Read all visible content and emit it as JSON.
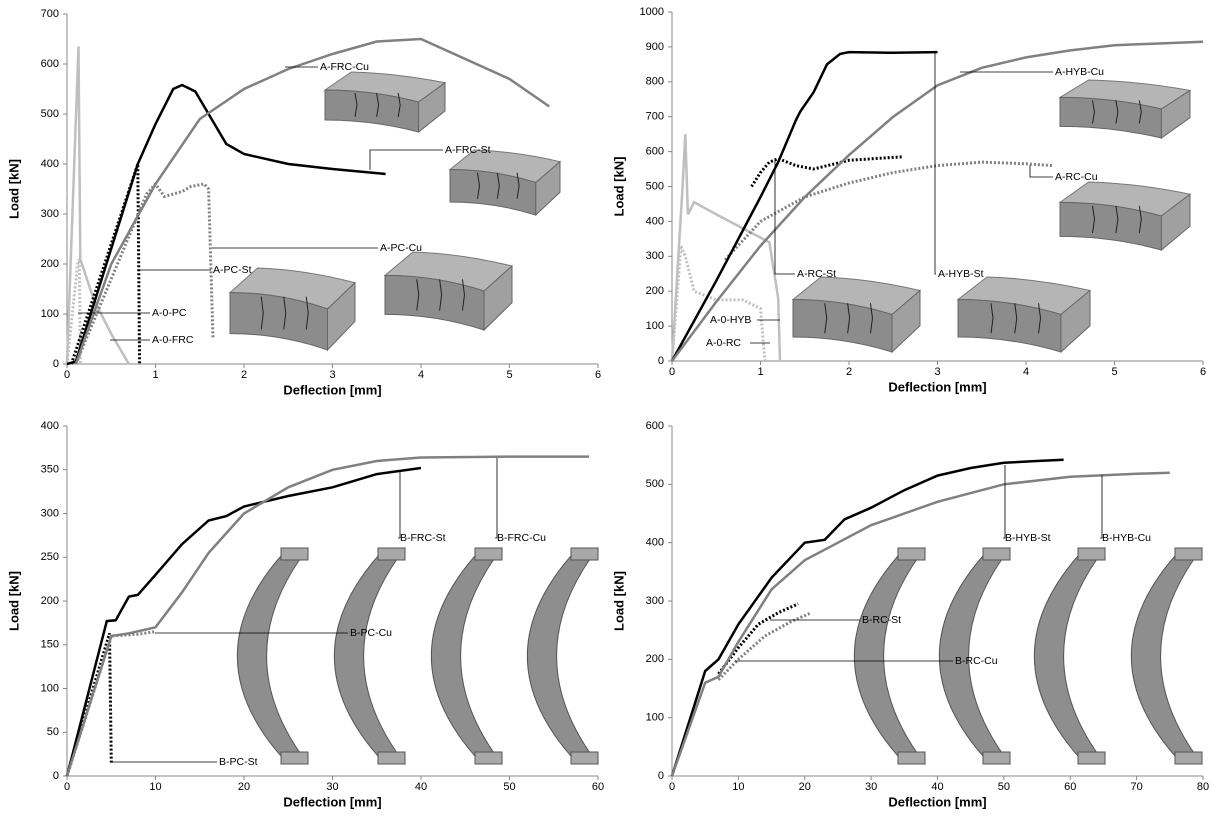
{
  "chart_data": [
    {
      "type": "line",
      "x_label": "Deflection [mm]",
      "y_label": "Load [kN]",
      "xlim": [
        0,
        6
      ],
      "ylim": [
        0,
        700
      ],
      "xticks": [
        0,
        1,
        2,
        3,
        4,
        5,
        6
      ],
      "yticks": [
        0,
        100,
        200,
        300,
        400,
        500,
        600,
        700
      ],
      "series": [
        {
          "name": "A-0-PC",
          "color": "#bfbfbf",
          "style": "dotted",
          "x": [
            0,
            0.12,
            0.14,
            0.15
          ],
          "values": [
            0,
            200,
            210,
            0
          ]
        },
        {
          "name": "A-0-FRC",
          "color": "#bfbfbf",
          "style": "solid",
          "x": [
            0,
            0.13,
            0.15,
            0.3,
            0.5,
            0.7
          ],
          "values": [
            0,
            635,
            210,
            130,
            60,
            0
          ]
        },
        {
          "name": "A-PC-St",
          "color": "#000000",
          "style": "dotted",
          "x": [
            0.05,
            0.8,
            0.82
          ],
          "values": [
            0,
            400,
            0
          ]
        },
        {
          "name": "A-PC-Cu",
          "color": "#808080",
          "style": "dotted",
          "x": [
            0.1,
            0.9,
            1.0,
            1.1,
            1.3,
            1.4,
            1.55,
            1.6,
            1.65
          ],
          "values": [
            0,
            340,
            360,
            335,
            345,
            355,
            360,
            350,
            50
          ]
        },
        {
          "name": "A-FRC-St",
          "color": "#000000",
          "style": "solid",
          "x": [
            0,
            0.1,
            0.8,
            1.0,
            1.2,
            1.3,
            1.45,
            1.6,
            1.8,
            2.0,
            2.5,
            3.0,
            3.6
          ],
          "values": [
            0,
            5,
            400,
            480,
            550,
            558,
            545,
            500,
            440,
            420,
            400,
            390,
            380
          ]
        },
        {
          "name": "A-FRC-Cu",
          "color": "#808080",
          "style": "solid",
          "x": [
            0.1,
            0.5,
            1.0,
            1.5,
            2.0,
            2.5,
            3.0,
            3.5,
            4.0,
            4.5,
            5.0,
            5.45
          ],
          "values": [
            0,
            200,
            360,
            490,
            550,
            590,
            620,
            645,
            650,
            610,
            570,
            515
          ]
        }
      ]
    },
    {
      "type": "line",
      "x_label": "Deflection [mm]",
      "y_label": "Load [kN]",
      "xlim": [
        0,
        6
      ],
      "ylim": [
        0,
        1000
      ],
      "xticks": [
        0,
        1,
        2,
        3,
        4,
        5,
        6
      ],
      "yticks": [
        0,
        100,
        200,
        300,
        400,
        500,
        600,
        700,
        800,
        900,
        1000
      ],
      "series": [
        {
          "name": "A-0-HYB",
          "color": "#bfbfbf",
          "style": "solid",
          "x": [
            0,
            0.12,
            0.15,
            0.18,
            0.25,
            0.5,
            0.8,
            1.1,
            1.15,
            1.2,
            1.22
          ],
          "values": [
            0,
            500,
            650,
            420,
            455,
            420,
            380,
            340,
            260,
            180,
            0
          ]
        },
        {
          "name": "A-0-RC",
          "color": "#bfbfbf",
          "style": "dotted",
          "x": [
            0,
            0.1,
            0.15,
            0.25,
            0.5,
            0.8,
            1.0,
            1.05
          ],
          "values": [
            0,
            330,
            300,
            200,
            175,
            175,
            150,
            0
          ]
        },
        {
          "name": "A-RC-St",
          "color": "#000000",
          "style": "dotted",
          "x": [
            0.9,
            1.0,
            1.1,
            1.2,
            1.4,
            1.6,
            2.0,
            2.6
          ],
          "values": [
            500,
            540,
            570,
            580,
            560,
            550,
            575,
            585
          ]
        },
        {
          "name": "A-RC-Cu",
          "color": "#808080",
          "style": "dotted",
          "x": [
            0.6,
            1,
            1.5,
            2,
            2.5,
            3,
            3.5,
            4,
            4.3
          ],
          "values": [
            290,
            400,
            470,
            510,
            540,
            560,
            570,
            565,
            560
          ]
        },
        {
          "name": "A-HYB-St",
          "color": "#000000",
          "style": "solid",
          "x": [
            0,
            0.5,
            1.0,
            1.2,
            1.4,
            1.45,
            1.6,
            1.75,
            1.9,
            2,
            2.5,
            3
          ],
          "values": [
            0,
            230,
            470,
            570,
            690,
            715,
            770,
            850,
            880,
            885,
            883,
            885
          ]
        },
        {
          "name": "A-HYB-Cu",
          "color": "#808080",
          "style": "solid",
          "x": [
            0,
            0.5,
            1,
            1.5,
            2,
            2.5,
            3,
            3.5,
            4,
            4.5,
            5,
            6
          ],
          "values": [
            0,
            170,
            330,
            470,
            590,
            700,
            790,
            840,
            870,
            890,
            905,
            915
          ]
        }
      ]
    },
    {
      "type": "line",
      "x_label": "Deflection [mm]",
      "y_label": "Load [kN]",
      "xlim": [
        0,
        60
      ],
      "ylim": [
        0,
        400
      ],
      "xticks": [
        0,
        10,
        20,
        30,
        40,
        50,
        60
      ],
      "yticks": [
        0,
        50,
        100,
        150,
        200,
        250,
        300,
        350,
        400
      ],
      "series": [
        {
          "name": "B-PC-St",
          "color": "#000000",
          "style": "dotted",
          "x": [
            0,
            4.8,
            5
          ],
          "values": [
            0,
            163,
            15
          ]
        },
        {
          "name": "B-PC-Cu",
          "color": "#808080",
          "style": "dotted",
          "x": [
            0,
            5,
            8,
            10
          ],
          "values": [
            0,
            160,
            162,
            165
          ]
        },
        {
          "name": "B-FRC-St",
          "color": "#000000",
          "style": "solid",
          "x": [
            0,
            4.5,
            5.5,
            7,
            8,
            10,
            13,
            16,
            18,
            20,
            25,
            30,
            35,
            40
          ],
          "values": [
            0,
            177,
            178,
            205,
            207,
            230,
            265,
            292,
            297,
            308,
            320,
            330,
            345,
            352
          ]
        },
        {
          "name": "B-FRC-Cu",
          "color": "#808080",
          "style": "solid",
          "x": [
            0,
            5,
            7,
            10,
            13,
            16,
            20,
            25,
            30,
            35,
            40,
            50,
            59
          ],
          "values": [
            0,
            160,
            163,
            170,
            210,
            255,
            300,
            330,
            350,
            360,
            364,
            365,
            365
          ]
        }
      ]
    },
    {
      "type": "line",
      "x_label": "Deflection [mm]",
      "y_label": "Load [kN]",
      "xlim": [
        0,
        80
      ],
      "ylim": [
        0,
        600
      ],
      "xticks": [
        0,
        10,
        20,
        30,
        40,
        50,
        60,
        70,
        80
      ],
      "yticks": [
        0,
        100,
        200,
        300,
        400,
        500,
        600
      ],
      "series": [
        {
          "name": "B-RC-St",
          "color": "#000000",
          "style": "dotted",
          "x": [
            7,
            10,
            13,
            16,
            19
          ],
          "values": [
            175,
            220,
            260,
            280,
            295
          ]
        },
        {
          "name": "B-RC-Cu",
          "color": "#808080",
          "style": "dotted",
          "x": [
            7,
            10,
            14,
            18,
            21
          ],
          "values": [
            165,
            200,
            240,
            265,
            280
          ]
        },
        {
          "name": "B-HYB-St",
          "color": "#000000",
          "style": "solid",
          "x": [
            0,
            5,
            7,
            10,
            15,
            20,
            23,
            26,
            30,
            35,
            40,
            45,
            50,
            55,
            59
          ],
          "values": [
            0,
            180,
            200,
            260,
            340,
            400,
            405,
            440,
            460,
            490,
            515,
            528,
            537,
            540,
            542
          ]
        },
        {
          "name": "B-HYB-Cu",
          "color": "#808080",
          "style": "solid",
          "x": [
            0,
            5,
            7,
            10,
            15,
            20,
            25,
            30,
            40,
            50,
            60,
            70,
            75
          ],
          "values": [
            0,
            160,
            170,
            230,
            320,
            370,
            400,
            430,
            470,
            500,
            513,
            518,
            520
          ]
        }
      ]
    }
  ]
}
